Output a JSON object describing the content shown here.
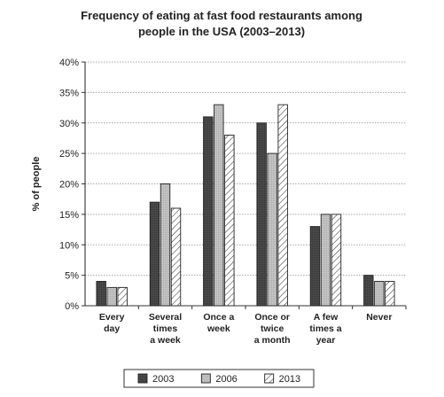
{
  "chart_data": {
    "type": "bar",
    "title": [
      "Frequency of eating at fast food restaurants among",
      "people in the USA (2003–2013)"
    ],
    "xlabel": "",
    "ylabel": "% of people",
    "ylim": [
      0,
      40
    ],
    "yticks": [
      0,
      5,
      10,
      15,
      20,
      25,
      30,
      35,
      40
    ],
    "ytick_labels": [
      "0%",
      "5%",
      "10%",
      "15%",
      "20%",
      "25%",
      "30%",
      "35%",
      "40%"
    ],
    "grid": true,
    "legend_position": "bottom",
    "categories": [
      [
        "Every",
        "day"
      ],
      [
        "Several",
        "times",
        "a week"
      ],
      [
        "Once a",
        "week"
      ],
      [
        "Once or",
        "twice",
        "a month"
      ],
      [
        "A few",
        "times a",
        "year"
      ],
      [
        "Never"
      ]
    ],
    "series": [
      {
        "name": "2003",
        "values": [
          4,
          17,
          31,
          30,
          13,
          5
        ],
        "fill": "dark",
        "color": "#444444"
      },
      {
        "name": "2006",
        "values": [
          3,
          20,
          33,
          25,
          15,
          4
        ],
        "fill": "light",
        "color": "#bdbdbd"
      },
      {
        "name": "2013",
        "values": [
          3,
          16,
          28,
          33,
          15,
          4
        ],
        "fill": "hatch",
        "color": "#ffffff"
      }
    ]
  }
}
